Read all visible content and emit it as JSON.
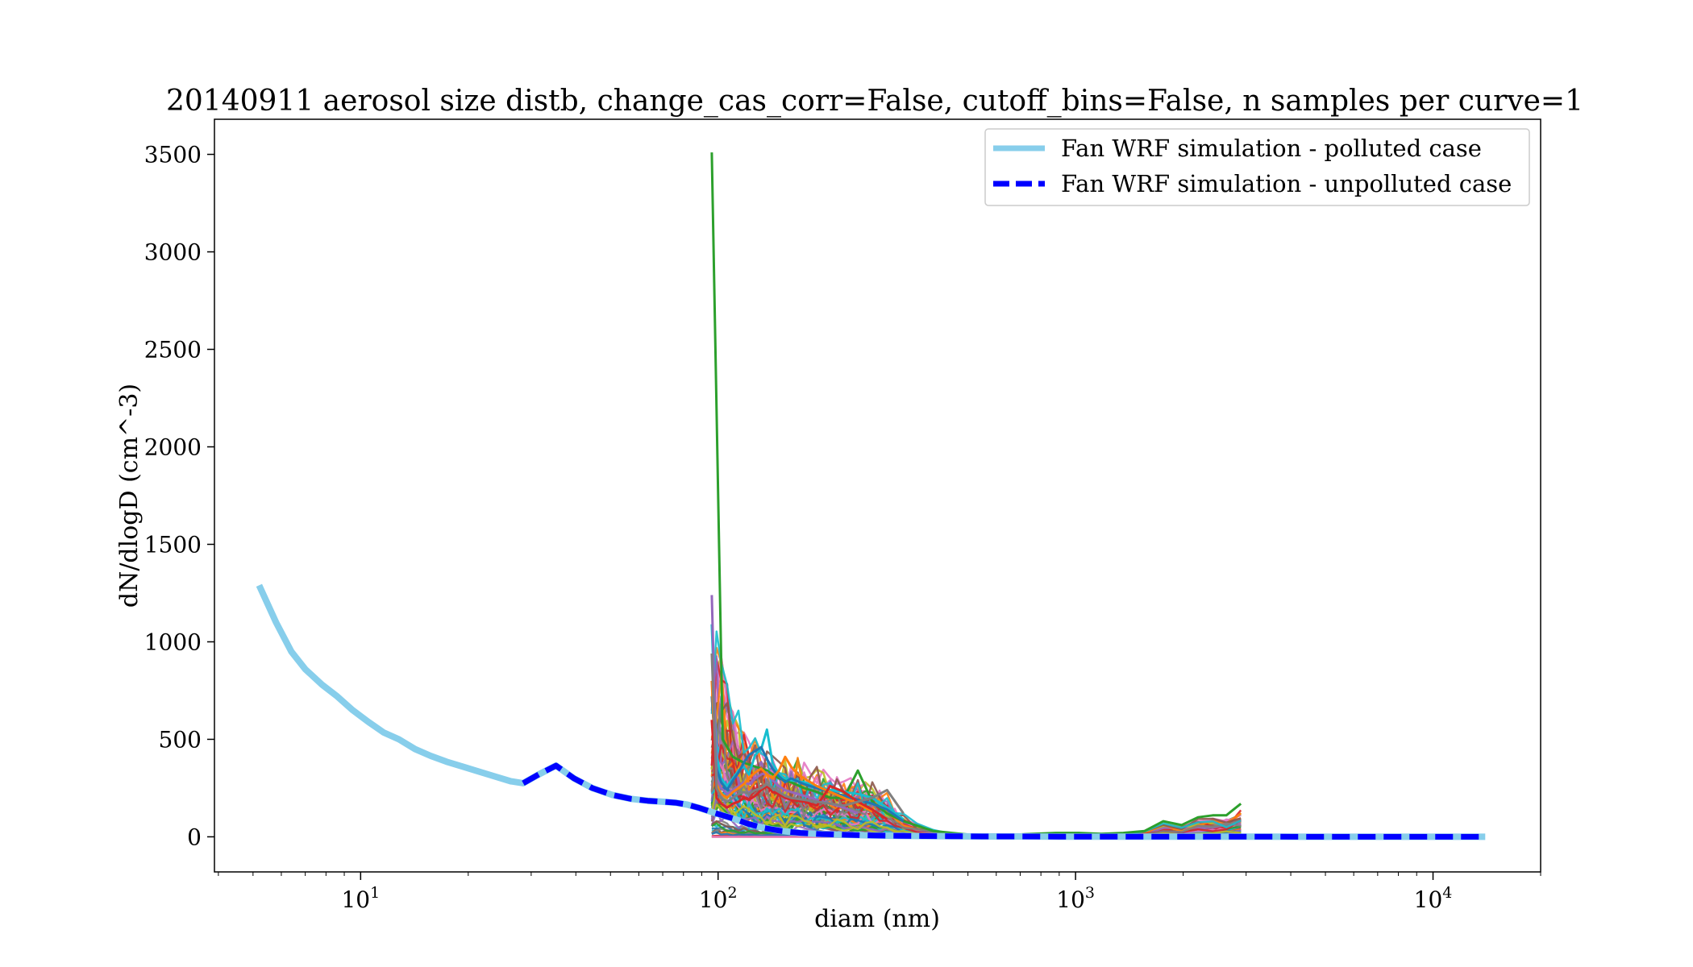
{
  "chart_data": {
    "type": "line",
    "title": "20140911 aerosol size distb, change_cas_corr=False, cutoff_bins=False, n samples per curve=1",
    "xlabel": "diam (nm)",
    "ylabel": "dN/dlogD (cm^-3)",
    "xscale": "log",
    "xlim": [
      3.9,
      20000
    ],
    "ylim": [
      -180,
      3680
    ],
    "x_tick_labels": [
      {
        "value": 10,
        "base": "10",
        "exp": "1"
      },
      {
        "value": 100,
        "base": "10",
        "exp": "2"
      },
      {
        "value": 1000,
        "base": "10",
        "exp": "3"
      },
      {
        "value": 10000,
        "base": "10",
        "exp": "4"
      }
    ],
    "y_ticks": [
      0,
      500,
      1000,
      1500,
      2000,
      2500,
      3000,
      3500
    ],
    "y_tick_labels": [
      "0",
      "500",
      "1000",
      "1500",
      "2000",
      "2500",
      "3000",
      "3500"
    ],
    "grid": false,
    "legend_position": "top-right",
    "legend": [
      {
        "label": "Fan WRF simulation - polluted case",
        "color": "#87ceeb",
        "style": "solid"
      },
      {
        "label": "Fan WRF simulation - unpolluted case",
        "color": "#0000ff",
        "style": "dashed"
      }
    ],
    "model_series": [
      {
        "name": "Fan WRF simulation - polluted case",
        "color": "#87ceeb",
        "x": [
          5.2,
          5.8,
          6.4,
          7.0,
          7.8,
          8.6,
          9.5,
          10.5,
          11.6,
          12.8,
          14.2,
          15.7,
          17.4,
          19.3,
          21.4,
          23.7,
          26.3,
          28.5,
          31.5,
          35.2,
          39.5,
          44.5,
          50.5,
          57.0,
          63.5,
          70.0,
          76.0,
          82.0,
          88.0,
          95.0,
          103,
          112,
          122,
          135,
          150,
          170,
          195,
          230,
          270,
          320,
          380,
          450,
          550,
          700,
          900,
          1200,
          1600,
          2200,
          3000,
          4500,
          7000,
          10000,
          14000
        ],
        "y": [
          1290,
          1100,
          950,
          860,
          780,
          720,
          650,
          590,
          535,
          500,
          450,
          415,
          385,
          360,
          335,
          310,
          285,
          275,
          320,
          365,
          300,
          250,
          215,
          195,
          185,
          180,
          175,
          165,
          150,
          130,
          110,
          90,
          65,
          45,
          30,
          20,
          14,
          10,
          7,
          5,
          4,
          3,
          2,
          2,
          1,
          1,
          1,
          1,
          1,
          0,
          0,
          0,
          0
        ]
      },
      {
        "name": "Fan WRF simulation - unpolluted case",
        "color": "#0000ff",
        "x": [
          28.5,
          31.5,
          35.2,
          39.5,
          44.5,
          50.5,
          57.0,
          63.5,
          70.0,
          76.0,
          82.0,
          88.0,
          95.0,
          103,
          112,
          122,
          135,
          150,
          170,
          195,
          230,
          270,
          320,
          380,
          450,
          550,
          700,
          900,
          1200,
          1600,
          2200,
          3000,
          4500,
          7000,
          10000,
          14000
        ],
        "y": [
          275,
          320,
          365,
          300,
          250,
          215,
          195,
          185,
          180,
          175,
          165,
          150,
          130,
          110,
          90,
          65,
          45,
          30,
          20,
          14,
          10,
          7,
          5,
          4,
          3,
          2,
          2,
          1,
          1,
          1,
          1,
          1,
          0,
          0,
          0,
          0
        ]
      }
    ],
    "observation_bins_x": [
      96,
      99,
      102,
      106,
      110,
      114,
      118,
      122,
      127,
      132,
      137,
      142,
      148,
      154,
      160,
      167,
      174,
      181,
      189,
      197,
      206,
      215,
      225,
      235,
      246,
      258,
      270,
      283,
      297,
      312,
      330,
      360,
      400,
      450,
      510,
      580,
      660,
      760,
      880,
      1020,
      1180,
      1360,
      1560,
      1760,
      1980,
      2200,
      2420,
      2640,
      2900
    ],
    "observation_peak_values": [
      3510,
      1240,
      1090,
      940,
      800,
      720,
      640,
      590,
      560,
      520,
      500,
      480,
      460,
      450,
      440,
      550,
      430,
      410,
      400,
      390,
      380,
      360,
      350,
      340,
      330,
      320,
      310,
      300,
      250,
      180,
      130,
      80,
      40,
      20,
      10,
      10,
      10,
      10,
      20,
      20,
      15,
      20,
      30,
      80,
      60,
      100,
      110,
      110,
      170
    ],
    "observation_curve_colors": [
      "#1f77b4",
      "#ff7f0e",
      "#2ca02c",
      "#d62728",
      "#9467bd",
      "#8c564b",
      "#e377c2",
      "#7f7f7f",
      "#bcbd22",
      "#17becf"
    ],
    "highlighted_observation_curves": [
      {
        "color": "#2ca02c",
        "x": [
          96,
          103,
          110,
          118,
          127,
          137,
          148,
          160,
          174,
          189,
          206,
          225,
          246,
          270,
          297,
          330,
          400,
          510,
          660,
          880,
          1020,
          1180,
          1360,
          1560,
          1760,
          1980,
          2200,
          2420,
          2640,
          2900
        ],
        "y": [
          3510,
          500,
          410,
          380,
          360,
          340,
          300,
          280,
          250,
          230,
          200,
          200,
          340,
          180,
          120,
          80,
          30,
          10,
          10,
          20,
          20,
          15,
          20,
          30,
          80,
          60,
          100,
          110,
          110,
          170
        ]
      },
      {
        "color": "#17becf",
        "x": [
          96,
          99,
          102,
          106,
          110,
          114,
          118,
          122,
          127,
          132,
          137,
          142,
          148,
          154,
          160,
          174,
          189,
          206,
          225,
          246,
          270,
          297,
          330
        ],
        "y": [
          1090,
          420,
          300,
          260,
          300,
          340,
          360,
          320,
          420,
          450,
          550,
          380,
          320,
          300,
          290,
          280,
          260,
          240,
          230,
          220,
          200,
          150,
          90
        ]
      },
      {
        "color": "#1f77b4",
        "x": [
          96,
          99,
          102,
          106,
          110,
          114,
          118,
          122,
          127,
          132,
          137,
          142,
          148,
          154,
          160,
          174,
          189,
          206,
          225,
          246,
          270,
          297,
          330
        ],
        "y": [
          720,
          350,
          280,
          240,
          290,
          330,
          380,
          420,
          440,
          460,
          400,
          350,
          310,
          280,
          300,
          270,
          250,
          230,
          210,
          190,
          170,
          140,
          80
        ]
      },
      {
        "color": "#9467bd",
        "x": [
          96,
          99,
          102,
          106,
          110,
          114,
          118,
          122,
          127,
          132,
          137,
          142,
          148,
          154,
          160,
          174,
          189,
          206,
          225,
          246
        ],
        "y": [
          1240,
          300,
          250,
          220,
          240,
          260,
          280,
          270,
          300,
          320,
          330,
          290,
          260,
          240,
          230,
          210,
          190,
          170,
          150,
          120
        ]
      },
      {
        "color": "#ff7f0e",
        "x": [
          96,
          99,
          102,
          106,
          110,
          114,
          118,
          122,
          127,
          132,
          137,
          142,
          148,
          154,
          160,
          167,
          174,
          189,
          206,
          225,
          246,
          270
        ],
        "y": [
          800,
          260,
          220,
          200,
          230,
          250,
          270,
          300,
          330,
          350,
          320,
          300,
          340,
          410,
          360,
          320,
          300,
          260,
          230,
          200,
          170,
          130
        ]
      },
      {
        "color": "#d62728",
        "x": [
          96,
          99,
          102,
          106,
          110,
          114,
          118,
          122,
          127,
          132,
          137,
          142,
          148,
          154,
          160,
          174,
          189,
          206,
          225,
          246,
          270,
          297
        ],
        "y": [
          600,
          200,
          170,
          150,
          170,
          180,
          200,
          190,
          210,
          240,
          260,
          230,
          220,
          200,
          190,
          180,
          160,
          260,
          230,
          180,
          140,
          90
        ]
      },
      {
        "color": "#7f7f7f",
        "x": [
          96,
          99,
          102,
          106,
          110,
          114,
          118,
          122,
          127,
          132,
          137,
          142,
          148,
          154,
          160,
          174,
          189,
          206,
          225,
          246,
          270,
          297,
          330
        ],
        "y": [
          940,
          250,
          200,
          180,
          200,
          220,
          230,
          220,
          240,
          250,
          270,
          250,
          230,
          210,
          200,
          190,
          180,
          170,
          160,
          180,
          200,
          240,
          120
        ]
      }
    ]
  }
}
